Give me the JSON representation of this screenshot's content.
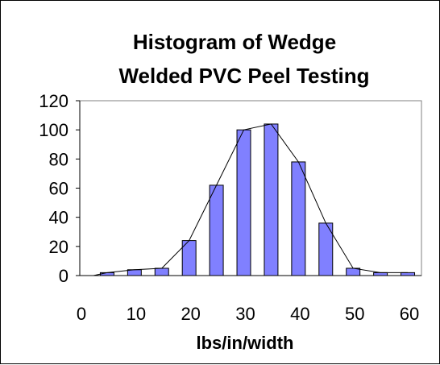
{
  "chart_data": {
    "type": "bar",
    "title_lines": [
      "Histogram of Wedge",
      "Welded PVC Peel Testing"
    ],
    "xlabel": "lbs/in/width",
    "ylabel": "",
    "ylim": [
      0,
      120
    ],
    "yticks": [
      "0",
      "20",
      "40",
      "60",
      "80",
      "100",
      "120"
    ],
    "xlim": [
      0,
      62.5
    ],
    "xticks": [
      "0",
      "10",
      "20",
      "30",
      "40",
      "50",
      "60"
    ],
    "bar_width": 2.5,
    "x": [
      5,
      10,
      15,
      20,
      25,
      30,
      35,
      40,
      45,
      50,
      55,
      60
    ],
    "values": [
      2,
      4,
      5,
      24,
      62,
      100,
      104,
      78,
      36,
      5,
      2,
      2
    ],
    "polygon": {
      "x": [
        2.5,
        5,
        10,
        15,
        20,
        25,
        30,
        35,
        40,
        45,
        50,
        55,
        60
      ],
      "y": [
        0,
        2,
        4,
        5,
        24,
        62,
        100,
        104,
        78,
        36,
        5,
        2,
        2
      ]
    },
    "grid": false,
    "legend": "none",
    "colors": {
      "bar_fill": "#8080ff",
      "bar_stroke": "#000000",
      "line": "#000000",
      "axis": "#000000",
      "frame": "#808080"
    }
  }
}
